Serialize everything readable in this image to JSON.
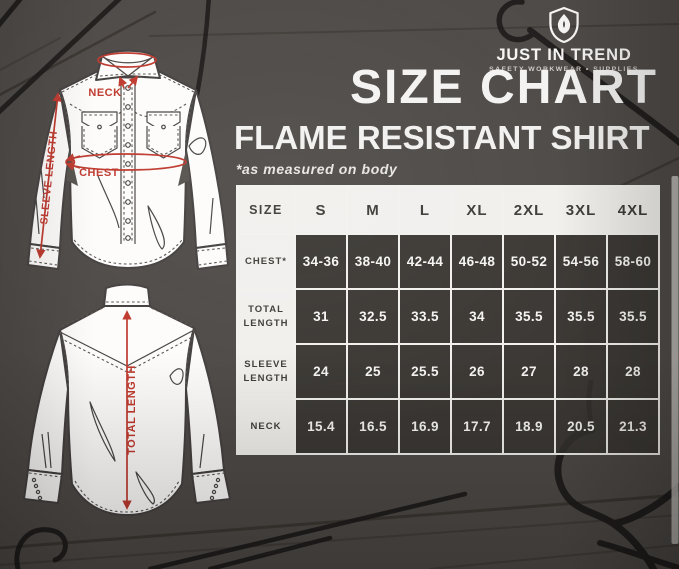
{
  "brand": {
    "name": "JUST IN TREND",
    "tagline": "SAFETY WORKWEAR • SUPPLIES",
    "icon": "shield-flame-icon"
  },
  "header": {
    "title": "SIZE CHART",
    "subtitle": "FLAME RESISTANT SHIRT",
    "note": "*as measured on body"
  },
  "diagram": {
    "front": {
      "neck_label": "NECK",
      "chest_label": "CHEST",
      "sleeve_label": "SLEEVE LENGTH"
    },
    "back": {
      "total_label": "TOTAL LENGTH"
    },
    "annotation_color": "#bf3a2f"
  },
  "chart_data": {
    "type": "table",
    "title": "SIZE CHART — FLAME RESISTANT SHIRT (as measured on body)",
    "columns": [
      "SIZE",
      "S",
      "M",
      "L",
      "XL",
      "2XL",
      "3XL",
      "4XL"
    ],
    "rows": [
      {
        "label": "CHEST*",
        "values": [
          "34-36",
          "38-40",
          "42-44",
          "46-48",
          "50-52",
          "54-56",
          "58-60"
        ]
      },
      {
        "label": "TOTAL LENGTH",
        "values": [
          "31",
          "32.5",
          "33.5",
          "34",
          "35.5",
          "35.5",
          "35.5"
        ]
      },
      {
        "label": "SLEEVE LENGTH",
        "values": [
          "24",
          "25",
          "25.5",
          "26",
          "27",
          "28",
          "28"
        ]
      },
      {
        "label": "NECK",
        "values": [
          "15.4",
          "16.5",
          "16.9",
          "17.7",
          "18.9",
          "20.5",
          "21.3"
        ]
      }
    ]
  },
  "colors": {
    "background": "#4f4b48",
    "table_light": "#f2f0ed",
    "table_dark_rgba": "rgba(56,52,49,0.82)",
    "accent_red": "#bf3a2f",
    "text_light": "#f6f5f3",
    "text_dark": "#403c39",
    "hanger": "#1d1a18"
  }
}
